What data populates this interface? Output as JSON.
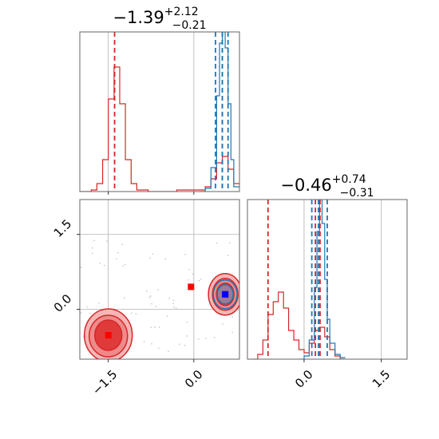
{
  "chart_data": [
    {
      "panel": "histogram-param-1",
      "type": "line",
      "title": {
        "main": "−1.39",
        "sup": "+2.12",
        "sub": "−0.21"
      },
      "xlim": [
        -2.0,
        0.8
      ],
      "grid": true,
      "series": [
        {
          "color": "#d62728",
          "x": [
            -2.0,
            -1.9,
            -1.8,
            -1.7,
            -1.6,
            -1.5,
            -1.4,
            -1.3,
            -1.2,
            -1.1,
            -1.0,
            -0.9,
            -0.8,
            -0.7,
            -0.6,
            -0.5,
            -0.4,
            -0.3,
            -0.2,
            -0.1,
            0.0,
            0.1,
            0.2,
            0.3,
            0.4,
            0.5,
            0.6,
            0.7,
            0.8
          ],
          "y": [
            0,
            0,
            0.01,
            0.05,
            0.2,
            0.58,
            0.78,
            0.55,
            0.2,
            0.05,
            0.01,
            0.01,
            0,
            0,
            0,
            0,
            0,
            0.01,
            0.01,
            0.01,
            0.01,
            0.01,
            0.03,
            0.08,
            0.18,
            0.22,
            0.14,
            0.05,
            0
          ]
        },
        {
          "color": "#1f77b4",
          "x": [
            0.1,
            0.2,
            0.3,
            0.4,
            0.45,
            0.5,
            0.55,
            0.6,
            0.65,
            0.7,
            0.8
          ],
          "y": [
            0,
            0.02,
            0.15,
            0.6,
            0.93,
            1.0,
            0.9,
            0.55,
            0.2,
            0.03,
            0
          ]
        }
      ],
      "vlines": [
        {
          "x": -1.39,
          "color": "#d62728"
        },
        {
          "x": 0.5,
          "color": "#d62728"
        },
        {
          "x": 0.38,
          "color": "#1f77b4"
        },
        {
          "x": 0.5,
          "color": "#1f77b4"
        },
        {
          "x": 0.6,
          "color": "#1f77b4"
        }
      ]
    },
    {
      "panel": "scatter-2d",
      "type": "scatter",
      "xlim": [
        -2.0,
        0.8
      ],
      "ylim": [
        -1.0,
        2.2
      ],
      "xticks": [
        "−1.5",
        "0.0"
      ],
      "yticks": [
        "1.5",
        "0.0"
      ],
      "grid": true,
      "red_peak_a": {
        "x": -1.5,
        "y": -0.52
      },
      "red_peak_b": {
        "x": 0.55,
        "y": 0.3
      },
      "blue_peak": {
        "x": 0.55,
        "y": 0.3
      },
      "markers": [
        {
          "x": -1.5,
          "y": -0.52,
          "color": "#ff0000"
        },
        {
          "x": -0.05,
          "y": 0.45,
          "color": "#ff0000"
        },
        {
          "x": 0.55,
          "y": 0.3,
          "color": "#ff0000"
        },
        {
          "x": 0.55,
          "y": 0.3,
          "color": "#0000ff"
        }
      ]
    },
    {
      "panel": "histogram-param-2",
      "type": "line",
      "title": {
        "main": "−0.46",
        "sup": "+0.74",
        "sub": "−0.31"
      },
      "xlim": [
        -1.1,
        2.0
      ],
      "xticks": [
        "0.0",
        "1.5"
      ],
      "grid": true,
      "series": [
        {
          "color": "#d62728",
          "x": [
            -1.0,
            -0.9,
            -0.8,
            -0.7,
            -0.6,
            -0.5,
            -0.4,
            -0.3,
            -0.2,
            -0.1,
            0.0,
            0.1,
            0.2,
            0.3,
            0.4,
            0.5,
            0.6,
            0.7,
            0.8
          ],
          "y": [
            0,
            0.03,
            0.12,
            0.28,
            0.36,
            0.42,
            0.32,
            0.18,
            0.12,
            0.06,
            0.04,
            0.1,
            0.18,
            0.2,
            0.14,
            0.06,
            0.02,
            0,
            0
          ]
        },
        {
          "color": "#1f77b4",
          "x": [
            -0.1,
            0.0,
            0.1,
            0.2,
            0.25,
            0.3,
            0.35,
            0.4,
            0.45,
            0.5,
            0.6,
            0.7,
            0.8
          ],
          "y": [
            0,
            0.02,
            0.12,
            0.45,
            0.8,
            1.0,
            0.85,
            0.5,
            0.25,
            0.1,
            0.03,
            0.01,
            0
          ]
        }
      ],
      "vlines": [
        {
          "x": -0.7,
          "color": "#d62728"
        },
        {
          "x": 0.22,
          "color": "#d62728"
        },
        {
          "x": 0.31,
          "color": "#d62728"
        },
        {
          "x": 0.15,
          "color": "#1f77b4"
        },
        {
          "x": 0.28,
          "color": "#1f77b4"
        },
        {
          "x": 0.45,
          "color": "#1f77b4"
        }
      ]
    }
  ]
}
